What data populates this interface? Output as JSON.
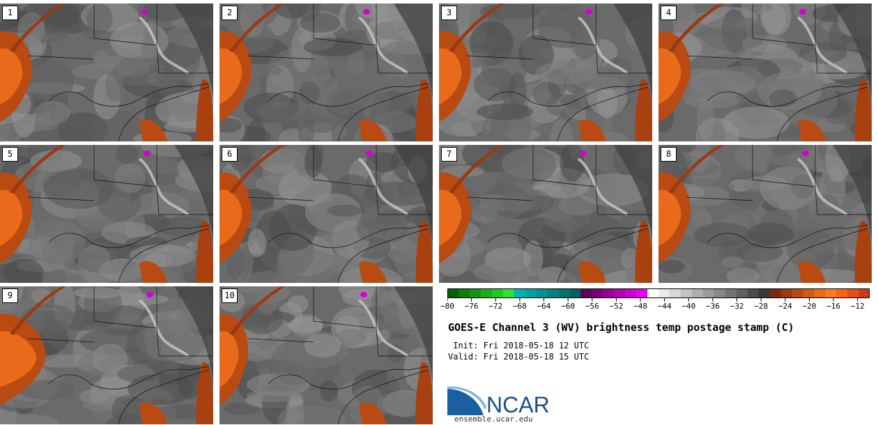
{
  "panels": [
    {
      "label": "1"
    },
    {
      "label": "2"
    },
    {
      "label": "3"
    },
    {
      "label": "4"
    },
    {
      "label": "5"
    },
    {
      "label": "6"
    },
    {
      "label": "7"
    },
    {
      "label": "8"
    },
    {
      "label": "9"
    },
    {
      "label": "10"
    }
  ],
  "colorbar": {
    "colors": [
      "#006400",
      "#0a7d0a",
      "#129612",
      "#1aaf1a",
      "#22c822",
      "#2ee12e",
      "#00b4b4",
      "#00a3a3",
      "#009292",
      "#008282",
      "#007272",
      "#006262",
      "#5e005e",
      "#7a007a",
      "#960096",
      "#b200b2",
      "#ce00ce",
      "#ea00ea",
      "#ffffff",
      "#ebebeb",
      "#d7d7d7",
      "#c3c3c3",
      "#afafaf",
      "#9b9b9b",
      "#878787",
      "#737373",
      "#5f5f5f",
      "#4b4b4b",
      "#373737",
      "#7a2a10",
      "#9a3a10",
      "#b84a12",
      "#d05a16",
      "#e86a1a",
      "#ff7a1e",
      "#ff6018",
      "#e84e14",
      "#cc3c10"
    ],
    "min": -80,
    "max": -10,
    "tick_labels": [
      "−80",
      "−76",
      "−72",
      "−68",
      "−64",
      "−60",
      "−56",
      "−52",
      "−48",
      "−44",
      "−40",
      "−36",
      "−32",
      "−28",
      "−24",
      "−20",
      "−16",
      "−12"
    ],
    "tick_values": [
      -80,
      -76,
      -72,
      -68,
      -64,
      -60,
      -56,
      -52,
      -48,
      -44,
      -40,
      -36,
      -32,
      -28,
      -24,
      -20,
      -16,
      -12
    ]
  },
  "title": "GOES-E Channel 3 (WV) brightness temp postage stamp (C)",
  "init": " Init: Fri 2018-05-18 12 UTC",
  "valid": "Valid: Fri 2018-05-18 15 UTC",
  "logo_text": "NCAR",
  "site": "ensemble.ucar.edu"
}
